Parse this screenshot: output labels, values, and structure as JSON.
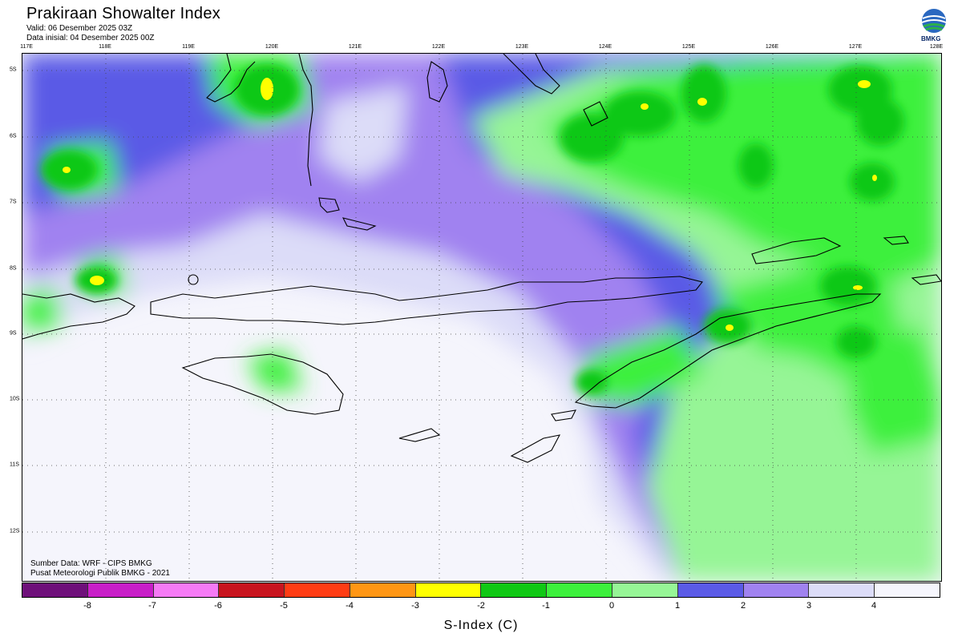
{
  "header": {
    "title": "Prakiraan Showalter Index",
    "valid": "Valid: 06 Desember 2025 03Z",
    "init": "Data inisial: 04 Desember 2025 00Z"
  },
  "logo": {
    "icon": "bmkg-logo",
    "text": "BMKG"
  },
  "map": {
    "lon_labels": [
      "117E",
      "118E",
      "119E",
      "120E",
      "121E",
      "122E",
      "123E",
      "124E",
      "125E",
      "126E",
      "127E",
      "128E"
    ],
    "lat_labels": [
      "5S",
      "6S",
      "7S",
      "8S",
      "9S",
      "10S",
      "11S",
      "12S"
    ],
    "grid": true
  },
  "credits": {
    "source": "Sumber Data: WRF - CIPS BMKG",
    "org": "Pusat Meteorologi Publik BMKG - 2021"
  },
  "colorbar": {
    "colors": [
      "#6e0f7a",
      "#c81ec8",
      "#f57af5",
      "#c8141e",
      "#ff3c14",
      "#ff9614",
      "#ffff00",
      "#0fc814",
      "#3cf03c",
      "#96f596",
      "#5a5ae6",
      "#a082f0",
      "#dcdcf8",
      "#f5f5fc"
    ],
    "ticks": [
      "-8",
      "-7",
      "-6",
      "-5",
      "-4",
      "-3",
      "-2",
      "-1",
      "0",
      "1",
      "2",
      "3",
      "4"
    ],
    "label": "S-Index (C)"
  }
}
